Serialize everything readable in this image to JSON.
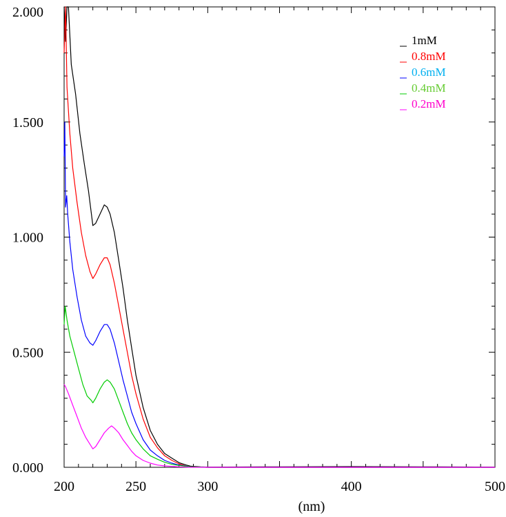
{
  "chart_data": {
    "type": "line",
    "title": "",
    "xlabel": "(nm)",
    "ylabel": "",
    "xlim": [
      200,
      500
    ],
    "ylim": [
      0,
      2
    ],
    "x_ticks": [
      200,
      250,
      300,
      350,
      400,
      450,
      500
    ],
    "x_tick_labels": [
      "200",
      "250",
      "300",
      "",
      "400",
      "",
      "500"
    ],
    "y_ticks": [
      0,
      0.5,
      1,
      1.5,
      2
    ],
    "y_tick_labels": [
      "0.000",
      "0.500",
      "1.000",
      "1.500",
      "2.000"
    ],
    "grid": false,
    "legend_position": "top-right",
    "series": [
      {
        "name": "1mM",
        "color": "#000000",
        "x": [
          200,
          201,
          202,
          203,
          205,
          208,
          211,
          214,
          217,
          219,
          220,
          222,
          225,
          228,
          230,
          232,
          235,
          238,
          241,
          244,
          247,
          250,
          255,
          260,
          265,
          270,
          275,
          280,
          285,
          288,
          295,
          300,
          350,
          400,
          450,
          500
        ],
        "y": [
          2.0,
          1.85,
          2.0,
          2.0,
          1.75,
          1.62,
          1.45,
          1.32,
          1.2,
          1.1,
          1.05,
          1.06,
          1.1,
          1.14,
          1.13,
          1.1,
          1.02,
          0.9,
          0.78,
          0.64,
          0.52,
          0.4,
          0.26,
          0.16,
          0.1,
          0.06,
          0.04,
          0.02,
          0.01,
          0.005,
          0.002,
          0.001,
          0.002,
          0.003,
          0.002,
          0.001
        ]
      },
      {
        "name": "0.8mM",
        "color": "#ff0000",
        "x": [
          200,
          201,
          202,
          204,
          206,
          209,
          212,
          215,
          218,
          220,
          222,
          225,
          228,
          230,
          232,
          235,
          238,
          241,
          244,
          247,
          250,
          255,
          260,
          265,
          270,
          275,
          280,
          285,
          288,
          295,
          300,
          400,
          500
        ],
        "y": [
          1.8,
          2.0,
          1.65,
          1.45,
          1.3,
          1.15,
          1.02,
          0.92,
          0.85,
          0.82,
          0.84,
          0.88,
          0.91,
          0.91,
          0.88,
          0.8,
          0.7,
          0.6,
          0.5,
          0.4,
          0.32,
          0.21,
          0.13,
          0.085,
          0.05,
          0.03,
          0.015,
          0.005,
          0.002,
          0.001,
          0.0,
          0.0,
          0.0
        ]
      },
      {
        "name": "0.6mM",
        "color": "#0000ff",
        "x": [
          200,
          200.5,
          201,
          201.8,
          202.5,
          204,
          206,
          209,
          212,
          215,
          218,
          220,
          222,
          225,
          228,
          230,
          232,
          235,
          238,
          241,
          244,
          247,
          250,
          255,
          260,
          265,
          270,
          275,
          280,
          285,
          288,
          295,
          300,
          400,
          500
        ],
        "y": [
          1.35,
          1.5,
          1.13,
          1.18,
          1.1,
          0.98,
          0.86,
          0.74,
          0.64,
          0.57,
          0.54,
          0.53,
          0.55,
          0.59,
          0.62,
          0.62,
          0.6,
          0.54,
          0.46,
          0.38,
          0.31,
          0.24,
          0.19,
          0.12,
          0.075,
          0.05,
          0.03,
          0.018,
          0.01,
          0.005,
          0.002,
          0.001,
          0.0,
          0.0,
          0.0
        ]
      },
      {
        "name": "0.4mM",
        "color": "#00cc00",
        "x": [
          200,
          200.7,
          202,
          204,
          207,
          210,
          213,
          216,
          219,
          220,
          222,
          225,
          228,
          230,
          232,
          235,
          238,
          241,
          244,
          247,
          250,
          255,
          260,
          265,
          270,
          275,
          280,
          285,
          288,
          295,
          300,
          400,
          500
        ],
        "y": [
          0.62,
          0.7,
          0.64,
          0.57,
          0.5,
          0.43,
          0.36,
          0.31,
          0.29,
          0.28,
          0.3,
          0.34,
          0.37,
          0.38,
          0.37,
          0.34,
          0.29,
          0.24,
          0.19,
          0.15,
          0.12,
          0.08,
          0.05,
          0.035,
          0.022,
          0.013,
          0.008,
          0.004,
          0.002,
          0.001,
          0.0,
          0.0,
          0.0
        ]
      },
      {
        "name": "0.2mM",
        "color": "#ff00ff",
        "x": [
          200,
          201,
          203,
          206,
          209,
          212,
          215,
          218,
          220,
          222,
          225,
          228,
          231,
          233,
          235,
          238,
          241,
          244,
          247,
          250,
          255,
          260,
          265,
          270,
          275,
          280,
          285,
          288,
          300,
          400,
          500
        ],
        "y": [
          0.36,
          0.35,
          0.32,
          0.27,
          0.22,
          0.17,
          0.13,
          0.1,
          0.08,
          0.09,
          0.12,
          0.15,
          0.17,
          0.18,
          0.17,
          0.15,
          0.12,
          0.095,
          0.07,
          0.05,
          0.03,
          0.018,
          0.01,
          0.006,
          0.004,
          0.002,
          0.001,
          0.0,
          0.0,
          0.0,
          0.0
        ]
      }
    ]
  }
}
